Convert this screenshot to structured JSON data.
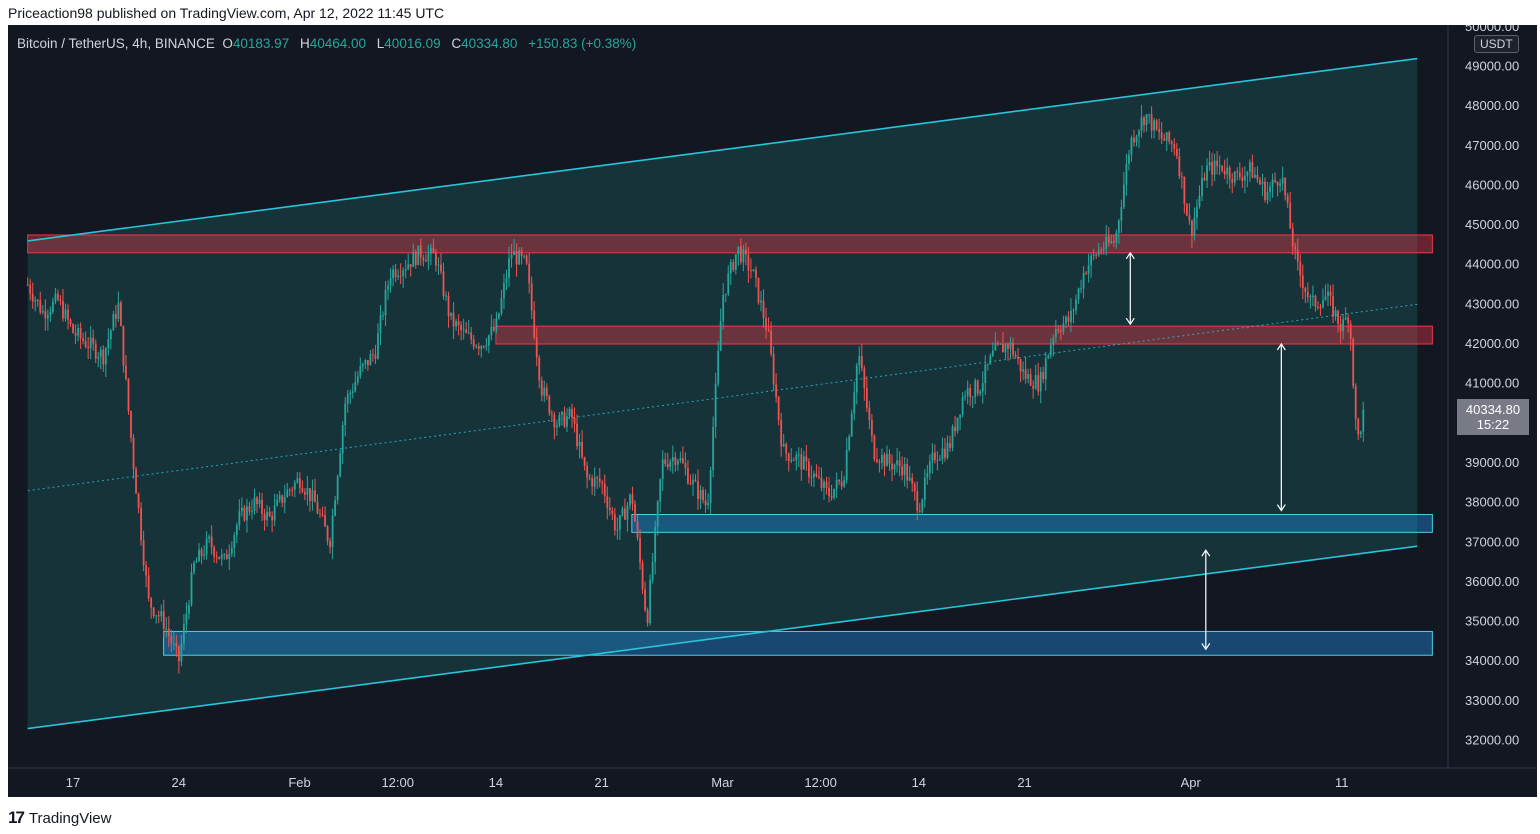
{
  "header": {
    "published": "Priceaction98 published on TradingView.com, Apr 12, 2022 11:45 UTC"
  },
  "legend": {
    "symbol": "Bitcoin / TetherUS, 4h, BINANCE",
    "o_label": "O",
    "o_value": "40183.97",
    "h_label": "H",
    "h_value": "40464.00",
    "l_label": "L",
    "l_value": "40016.09",
    "c_label": "C",
    "c_value": "40334.80",
    "change": "+150.83 (+0.38%)"
  },
  "price_tag": {
    "price": "40334.80",
    "countdown": "15:22"
  },
  "unit": "USDT",
  "footer": {
    "brand": "TradingView",
    "logo": "tradingview-logo"
  },
  "colors": {
    "background": "#131722",
    "up": "#26a69a",
    "down": "#ef5350",
    "channel": "#26c6da",
    "resistance": "#f23645",
    "support": "#2196f3"
  },
  "chart_data": {
    "type": "candlestick",
    "symbol": "BTCUSDT",
    "timeframe": "4h",
    "x_tick_labels": [
      "17",
      "24",
      "Feb",
      "12:00",
      "14",
      "21",
      "Mar",
      "12:00",
      "14",
      "21",
      "Apr",
      "11"
    ],
    "y_tick_labels": [
      "32000.00",
      "33000.00",
      "34000.00",
      "35000.00",
      "36000.00",
      "37000.00",
      "38000.00",
      "39000.00",
      "40000.00",
      "41000.00",
      "42000.00",
      "43000.00",
      "44000.00",
      "45000.00",
      "46000.00",
      "47000.00",
      "48000.00",
      "49000.00",
      "50000.00"
    ],
    "ylim": [
      31500,
      50300
    ],
    "grid": false,
    "last_price": 40334.8,
    "price_path": [
      {
        "date": "2022-01-14",
        "price": 43500
      },
      {
        "date": "2022-01-15",
        "price": 42800
      },
      {
        "date": "2022-01-16",
        "price": 43100
      },
      {
        "date": "2022-01-17",
        "price": 42300
      },
      {
        "date": "2022-01-18",
        "price": 42000
      },
      {
        "date": "2022-01-19",
        "price": 41700
      },
      {
        "date": "2022-01-20",
        "price": 43000
      },
      {
        "date": "2022-01-21",
        "price": 39000
      },
      {
        "date": "2022-01-22",
        "price": 35500
      },
      {
        "date": "2022-01-23",
        "price": 35000
      },
      {
        "date": "2022-01-24",
        "price": 34000
      },
      {
        "date": "2022-01-25",
        "price": 36400
      },
      {
        "date": "2022-01-26",
        "price": 37000
      },
      {
        "date": "2022-01-27",
        "price": 36500
      },
      {
        "date": "2022-01-28",
        "price": 37600
      },
      {
        "date": "2022-01-29",
        "price": 38000
      },
      {
        "date": "2022-01-30",
        "price": 37600
      },
      {
        "date": "2022-01-31",
        "price": 38200
      },
      {
        "date": "2022-02-01",
        "price": 38600
      },
      {
        "date": "2022-02-02",
        "price": 38000
      },
      {
        "date": "2022-02-03",
        "price": 37000
      },
      {
        "date": "2022-02-04",
        "price": 40500
      },
      {
        "date": "2022-02-05",
        "price": 41300
      },
      {
        "date": "2022-02-06",
        "price": 41800
      },
      {
        "date": "2022-02-07",
        "price": 43800
      },
      {
        "date": "2022-02-08",
        "price": 44000
      },
      {
        "date": "2022-02-09",
        "price": 44300
      },
      {
        "date": "2022-02-10",
        "price": 44200
      },
      {
        "date": "2022-02-11",
        "price": 42600
      },
      {
        "date": "2022-02-12",
        "price": 42200
      },
      {
        "date": "2022-02-13",
        "price": 42000
      },
      {
        "date": "2022-02-14",
        "price": 42400
      },
      {
        "date": "2022-02-15",
        "price": 44300
      },
      {
        "date": "2022-02-16",
        "price": 44000
      },
      {
        "date": "2022-02-17",
        "price": 40900
      },
      {
        "date": "2022-02-18",
        "price": 40000
      },
      {
        "date": "2022-02-19",
        "price": 40200
      },
      {
        "date": "2022-02-20",
        "price": 38600
      },
      {
        "date": "2022-02-21",
        "price": 38500
      },
      {
        "date": "2022-02-22",
        "price": 37300
      },
      {
        "date": "2022-02-23",
        "price": 38200
      },
      {
        "date": "2022-02-24",
        "price": 35000
      },
      {
        "date": "2022-02-25",
        "price": 39000
      },
      {
        "date": "2022-02-26",
        "price": 39200
      },
      {
        "date": "2022-02-27",
        "price": 38500
      },
      {
        "date": "2022-02-28",
        "price": 37900
      },
      {
        "date": "2022-03-01",
        "price": 43200
      },
      {
        "date": "2022-03-02",
        "price": 44400
      },
      {
        "date": "2022-03-03",
        "price": 43800
      },
      {
        "date": "2022-03-04",
        "price": 42300
      },
      {
        "date": "2022-03-05",
        "price": 39300
      },
      {
        "date": "2022-03-06",
        "price": 39100
      },
      {
        "date": "2022-03-07",
        "price": 38700
      },
      {
        "date": "2022-03-08",
        "price": 38200
      },
      {
        "date": "2022-03-09",
        "price": 38600
      },
      {
        "date": "2022-03-10",
        "price": 41800
      },
      {
        "date": "2022-03-11",
        "price": 39300
      },
      {
        "date": "2022-03-12",
        "price": 39000
      },
      {
        "date": "2022-03-13",
        "price": 38900
      },
      {
        "date": "2022-03-14",
        "price": 37900
      },
      {
        "date": "2022-03-15",
        "price": 39200
      },
      {
        "date": "2022-03-16",
        "price": 39400
      },
      {
        "date": "2022-03-17",
        "price": 40800
      },
      {
        "date": "2022-03-18",
        "price": 40900
      },
      {
        "date": "2022-03-19",
        "price": 41800
      },
      {
        "date": "2022-03-20",
        "price": 42000
      },
      {
        "date": "2022-03-21",
        "price": 41200
      },
      {
        "date": "2022-03-22",
        "price": 41000
      },
      {
        "date": "2022-03-23",
        "price": 42400
      },
      {
        "date": "2022-03-24",
        "price": 42600
      },
      {
        "date": "2022-03-25",
        "price": 43900
      },
      {
        "date": "2022-03-26",
        "price": 44400
      },
      {
        "date": "2022-03-27",
        "price": 44600
      },
      {
        "date": "2022-03-28",
        "price": 47100
      },
      {
        "date": "2022-03-29",
        "price": 47800
      },
      {
        "date": "2022-03-30",
        "price": 47200
      },
      {
        "date": "2022-03-31",
        "price": 47000
      },
      {
        "date": "2022-04-01",
        "price": 44800
      },
      {
        "date": "2022-04-02",
        "price": 46400
      },
      {
        "date": "2022-04-03",
        "price": 46500
      },
      {
        "date": "2022-04-04",
        "price": 46200
      },
      {
        "date": "2022-04-05",
        "price": 46400
      },
      {
        "date": "2022-04-06",
        "price": 45800
      },
      {
        "date": "2022-04-07",
        "price": 46300
      },
      {
        "date": "2022-04-08",
        "price": 44000
      },
      {
        "date": "2022-04-09",
        "price": 43000
      },
      {
        "date": "2022-04-10",
        "price": 43200
      },
      {
        "date": "2022-04-11",
        "price": 42400
      },
      {
        "date": "2022-04-11T12:00",
        "price": 42800
      },
      {
        "date": "2022-04-12",
        "price": 39500
      },
      {
        "date": "2022-04-12T12:00",
        "price": 40334.8
      }
    ],
    "channel": {
      "upper": [
        {
          "date": "2022-01-14",
          "price": 44600
        },
        {
          "date": "2022-04-16",
          "price": 49200
        }
      ],
      "middle": [
        {
          "date": "2022-01-14",
          "price": 38300
        },
        {
          "date": "2022-04-16",
          "price": 43000
        }
      ],
      "lower": [
        {
          "date": "2022-01-14",
          "price": 32300
        },
        {
          "date": "2022-04-16",
          "price": 36900
        }
      ]
    },
    "resistance_zones": [
      {
        "from": "2022-01-14",
        "to": "2022-04-17",
        "low": 44300,
        "high": 44750
      },
      {
        "from": "2022-02-14",
        "to": "2022-04-17",
        "low": 42000,
        "high": 42450
      }
    ],
    "support_zones": [
      {
        "from": "2022-02-23",
        "to": "2022-04-17",
        "low": 37250,
        "high": 37700
      },
      {
        "from": "2022-01-23",
        "to": "2022-04-17",
        "low": 34150,
        "high": 34750
      }
    ],
    "annotations": [
      {
        "type": "double-arrow",
        "date": "2022-03-28",
        "from": 42500,
        "to": 44300
      },
      {
        "type": "double-arrow",
        "date": "2022-04-02",
        "from": 36800,
        "to": 34300
      },
      {
        "type": "double-arrow",
        "date": "2022-04-07",
        "from": 42000,
        "to": 37800
      }
    ]
  }
}
